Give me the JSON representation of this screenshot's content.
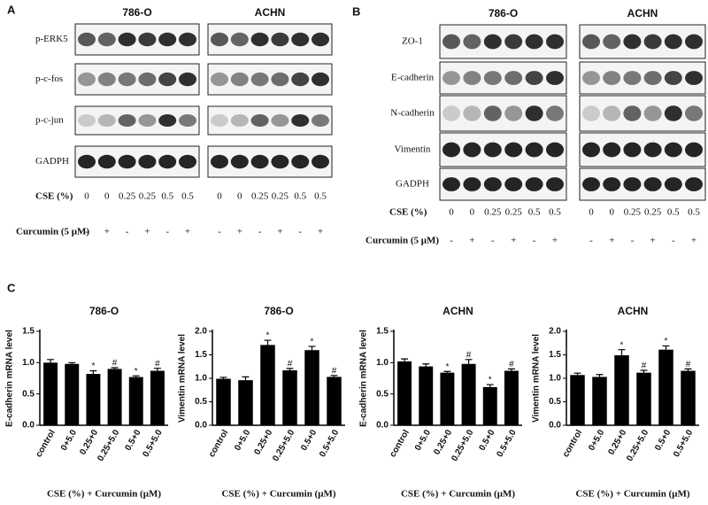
{
  "panel_a": {
    "label": "A",
    "headers": [
      "786-O",
      "ACHN"
    ],
    "rows": [
      "p-ERK5",
      "p-c-fos",
      "p-c-jun",
      "GADPH"
    ],
    "cse_label": "CSE (%)",
    "cse": [
      "0",
      "0",
      "0.25",
      "0.25",
      "0.5",
      "0.5"
    ],
    "curcumin_label": "Curcumin (5 μM)",
    "curcumin": [
      "-",
      "+",
      "-",
      "+",
      "-",
      "+"
    ]
  },
  "panel_b": {
    "label": "B",
    "headers": [
      "786-O",
      "ACHN"
    ],
    "rows": [
      "ZO-1",
      "E-cadherin",
      "N-cadherin",
      "Vimentin",
      "GADPH"
    ],
    "cse_label": "CSE (%)",
    "cse": [
      "0",
      "0",
      "0.25",
      "0.25",
      "0.5",
      "0.5"
    ],
    "curcumin_label": "Curcumin (5 μM)",
    "curcumin": [
      "-",
      "+",
      "-",
      "+",
      "-",
      "+"
    ]
  },
  "panel_c": {
    "label": "C"
  },
  "chart_data": [
    {
      "type": "bar",
      "title": "786-O",
      "y_label": "E-cadherin mRNA level",
      "x_label": "CSE (%) + Curcumin (μM)",
      "categories": [
        "control",
        "0+5.0",
        "0.25+0",
        "0.25+5.0",
        "0.5+0",
        "0.5+5.0"
      ],
      "values": [
        1.0,
        0.98,
        0.82,
        0.9,
        0.77,
        0.87
      ],
      "errors": [
        0.05,
        0.02,
        0.05,
        0.02,
        0.02,
        0.04
      ],
      "annotations": [
        null,
        null,
        "*",
        "#",
        "*",
        "#"
      ],
      "color": "#000000",
      "ylim": [
        0,
        1.5
      ],
      "yticks": [
        {
          "value": 0,
          "label": "0.0"
        },
        0.5,
        {
          "value": 1,
          "label": "1.0"
        },
        1.5
      ]
    },
    {
      "type": "bar",
      "title": "786-O",
      "y_label": "Vimentin mRNA level",
      "x_label": "CSE (%) + Curcumin (μM)",
      "categories": [
        "control",
        "0+5.0",
        "0.25+0",
        "0.25+5.0",
        "0.5+0",
        "0.5+5.0"
      ],
      "values": [
        0.99,
        0.96,
        1.71,
        1.17,
        1.6,
        1.03
      ],
      "errors": [
        0.03,
        0.07,
        0.1,
        0.04,
        0.08,
        0.03
      ],
      "annotations": [
        null,
        null,
        "*",
        "#",
        "*",
        "#"
      ],
      "color": "#000000",
      "ylim": [
        0,
        2
      ],
      "yticks": [
        {
          "value": 0,
          "label": "0.0"
        },
        0.5,
        {
          "value": 1,
          "label": "1.0"
        },
        1.5,
        {
          "value": 2,
          "label": "2.0"
        }
      ]
    },
    {
      "type": "bar",
      "title": "ACHN",
      "y_label": "E-cadherin mRNA level",
      "x_label": "CSE (%) + Curcumin (μM)",
      "categories": [
        "control",
        "0+5.0",
        "0.25+0",
        "0.25+5.0",
        "0.5+0",
        "0.5+5.0"
      ],
      "values": [
        1.02,
        0.94,
        0.84,
        0.98,
        0.61,
        0.87
      ],
      "errors": [
        0.04,
        0.04,
        0.02,
        0.07,
        0.04,
        0.03
      ],
      "annotations": [
        null,
        null,
        "*",
        "#",
        "*",
        "#"
      ],
      "color": "#000000",
      "ylim": [
        0,
        1.5
      ],
      "yticks": [
        {
          "value": 0,
          "label": "0.0"
        },
        0.5,
        {
          "value": 1,
          "label": "1.0"
        },
        1.5
      ]
    },
    {
      "type": "bar",
      "title": "ACHN",
      "y_label": "Vimentin mRNA level",
      "x_label": "CSE (%) + Curcumin (μM)",
      "categories": [
        "control",
        "0+5.0",
        "0.25+0",
        "0.25+5.0",
        "0.5+0",
        "0.5+5.0"
      ],
      "values": [
        1.07,
        1.03,
        1.49,
        1.12,
        1.61,
        1.16
      ],
      "errors": [
        0.04,
        0.05,
        0.12,
        0.05,
        0.08,
        0.04
      ],
      "annotations": [
        null,
        null,
        "*",
        "#",
        "*",
        "#"
      ],
      "color": "#000000",
      "ylim": [
        0,
        2
      ],
      "yticks": [
        {
          "value": 0,
          "label": "0.0"
        },
        0.5,
        {
          "value": 1,
          "label": "1.0"
        },
        1.5,
        {
          "value": 2,
          "label": "2.0"
        }
      ]
    }
  ]
}
